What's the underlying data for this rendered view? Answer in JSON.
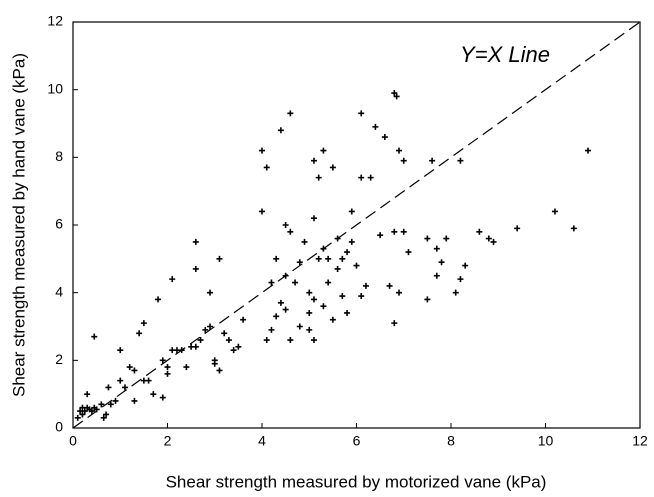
{
  "chart_data": {
    "type": "scatter",
    "x_label": "Shear strength measured by motorized vane (kPa)",
    "y_label": "Shear strength measured by hand vane (kPa)",
    "annotation": "Y=X Line",
    "xlim": [
      0,
      12
    ],
    "ylim": [
      0,
      12
    ],
    "xticks": [
      0,
      2,
      4,
      6,
      8,
      10,
      12
    ],
    "yticks": [
      0,
      2,
      4,
      6,
      8,
      10,
      12
    ],
    "color": "#000000",
    "reference_line": "y=x",
    "x": [
      0.1,
      0.15,
      0.2,
      0.25,
      0.3,
      0.35,
      0.4,
      0.45,
      0.5,
      0.3,
      0.45,
      0.2,
      0.6,
      0.7,
      0.65,
      0.75,
      0.8,
      0.9,
      1.0,
      1.0,
      1.1,
      1.2,
      1.3,
      1.3,
      1.4,
      1.5,
      1.5,
      1.6,
      1.7,
      1.8,
      1.9,
      1.9,
      2.0,
      2.0,
      2.1,
      2.1,
      2.2,
      2.3,
      2.4,
      2.5,
      2.6,
      2.6,
      2.6,
      2.7,
      2.8,
      2.9,
      2.9,
      3.0,
      3.0,
      3.1,
      3.1,
      3.2,
      3.3,
      3.4,
      3.5,
      3.6,
      4.0,
      4.0,
      4.1,
      4.1,
      4.2,
      4.2,
      4.3,
      4.3,
      4.4,
      4.4,
      4.5,
      4.5,
      4.5,
      4.6,
      4.6,
      4.6,
      4.7,
      4.8,
      4.8,
      4.9,
      5.0,
      5.0,
      5.0,
      5.1,
      5.1,
      5.1,
      5.1,
      5.2,
      5.2,
      5.3,
      5.3,
      5.3,
      5.4,
      5.4,
      5.5,
      5.5,
      5.6,
      5.6,
      5.7,
      5.7,
      5.8,
      5.8,
      5.9,
      5.9,
      6.0,
      6.1,
      6.1,
      6.1,
      6.2,
      6.3,
      6.4,
      6.5,
      6.6,
      6.7,
      6.8,
      6.8,
      6.8,
      6.85,
      6.9,
      6.9,
      7.0,
      7.0,
      7.1,
      7.5,
      7.5,
      7.6,
      7.7,
      7.7,
      7.8,
      7.9,
      8.1,
      8.2,
      8.2,
      8.3,
      8.6,
      8.8,
      8.9,
      9.4,
      10.2,
      10.6,
      10.9
    ],
    "values": [
      0.3,
      0.5,
      0.6,
      0.5,
      0.6,
      0.55,
      0.5,
      0.6,
      0.55,
      1.0,
      2.7,
      0.4,
      0.7,
      0.4,
      0.3,
      1.2,
      0.7,
      0.8,
      1.4,
      2.3,
      1.2,
      1.8,
      1.7,
      0.8,
      2.8,
      3.1,
      1.4,
      1.4,
      1.0,
      3.8,
      2.0,
      0.9,
      1.6,
      1.8,
      2.3,
      4.4,
      2.3,
      2.3,
      1.8,
      2.4,
      2.4,
      5.5,
      4.7,
      2.6,
      2.9,
      4.0,
      3.0,
      2.0,
      1.9,
      5.0,
      1.7,
      2.8,
      2.6,
      2.3,
      2.4,
      3.2,
      6.4,
      8.2,
      2.6,
      7.7,
      2.9,
      4.3,
      3.3,
      5.0,
      8.8,
      3.7,
      6.0,
      4.5,
      3.5,
      5.8,
      9.3,
      2.6,
      4.3,
      4.9,
      3.0,
      5.5,
      4.0,
      3.4,
      2.9,
      6.2,
      7.9,
      3.8,
      2.6,
      5.0,
      7.4,
      8.2,
      5.3,
      3.6,
      5.0,
      4.3,
      7.7,
      3.2,
      5.6,
      4.7,
      5.0,
      3.9,
      5.2,
      3.4,
      6.4,
      5.5,
      4.8,
      7.4,
      9.3,
      3.9,
      4.2,
      7.4,
      8.9,
      5.7,
      8.6,
      4.2,
      5.8,
      3.1,
      9.9,
      9.8,
      8.2,
      4.0,
      7.9,
      5.8,
      5.2,
      3.8,
      5.6,
      7.9,
      4.5,
      5.3,
      4.9,
      5.6,
      4.0,
      4.4,
      7.9,
      4.8,
      5.8,
      5.6,
      5.5,
      5.9,
      6.4,
      5.9,
      8.2
    ]
  }
}
